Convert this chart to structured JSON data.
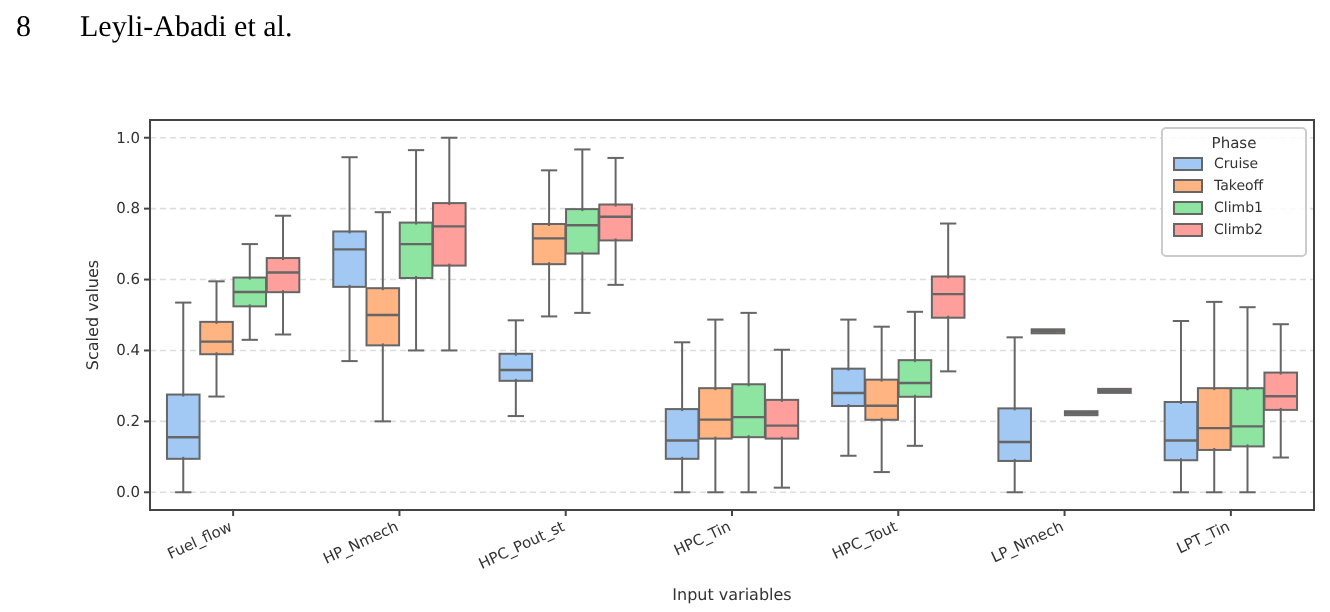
{
  "chart_data": {
    "type": "box",
    "annotations": [
      "8",
      "Leyli-Abadi et al."
    ],
    "xlabel": "Input variables",
    "ylabel": "Scaled values",
    "legend_title": "Phase",
    "legend": "top right",
    "grid": "y",
    "categories": [
      "Fuel_flow",
      "HP_Nmech",
      "HPC_Pout_st",
      "HPC_Tin",
      "HPC_Tout",
      "LP_Nmech",
      "LPT_Tin"
    ],
    "ylim": [
      -0.05,
      1.05
    ],
    "yticks": [
      {
        "value": 0,
        "label": "0.0"
      },
      {
        "value": 0.2,
        "label": "0.2"
      },
      {
        "value": 0.4,
        "label": "0.4"
      },
      {
        "value": 0.6,
        "label": "0.6"
      },
      {
        "value": 0.8,
        "label": "0.8"
      },
      {
        "value": 1,
        "label": "1.0"
      }
    ],
    "series": [
      {
        "name": "Cruise",
        "color": "#a1c9f4",
        "boxes": [
          {
            "low": 0,
            "q1": 0.1,
            "median": 0.155,
            "q3": 0.27,
            "high": 0.535
          },
          {
            "low": 0.37,
            "q1": 0.585,
            "median": 0.685,
            "q3": 0.73,
            "high": 0.945
          },
          {
            "low": 0.215,
            "q1": 0.32,
            "median": 0.345,
            "q3": 0.385,
            "high": 0.485
          },
          {
            "low": 0,
            "q1": 0.1,
            "median": 0.146,
            "q3": 0.229,
            "high": 0.423
          },
          {
            "low": 0.103,
            "q1": 0.249,
            "median": 0.28,
            "q3": 0.343,
            "high": 0.487
          },
          {
            "low": 0,
            "q1": 0.094,
            "median": 0.142,
            "q3": 0.231,
            "high": 0.437
          },
          {
            "low": 0,
            "q1": 0.096,
            "median": 0.146,
            "q3": 0.249,
            "high": 0.483
          }
        ]
      },
      {
        "name": "Takeoff",
        "color": "#ffb482",
        "boxes": [
          {
            "low": 0.27,
            "q1": 0.395,
            "median": 0.425,
            "q3": 0.475,
            "high": 0.595
          },
          {
            "low": 0.2,
            "q1": 0.42,
            "median": 0.5,
            "q3": 0.57,
            "high": 0.79
          },
          {
            "low": 0.496,
            "q1": 0.649,
            "median": 0.716,
            "q3": 0.751,
            "high": 0.908
          },
          {
            "low": 0,
            "q1": 0.157,
            "median": 0.205,
            "q3": 0.288,
            "high": 0.487
          },
          {
            "low": 0.057,
            "q1": 0.21,
            "median": 0.244,
            "q3": 0.312,
            "high": 0.467
          },
          {
            "low": 0.454,
            "q1": 0.454,
            "median": 0.454,
            "q3": 0.454,
            "high": 0.454
          },
          {
            "low": 0,
            "q1": 0.125,
            "median": 0.181,
            "q3": 0.288,
            "high": 0.537
          }
        ]
      },
      {
        "name": "Climb1",
        "color": "#8de5a1",
        "boxes": [
          {
            "low": 0.43,
            "q1": 0.53,
            "median": 0.565,
            "q3": 0.6,
            "high": 0.7
          },
          {
            "low": 0.4,
            "q1": 0.61,
            "median": 0.7,
            "q3": 0.755,
            "high": 0.965
          },
          {
            "low": 0.506,
            "q1": 0.679,
            "median": 0.753,
            "q3": 0.793,
            "high": 0.967
          },
          {
            "low": 0,
            "q1": 0.161,
            "median": 0.212,
            "q3": 0.299,
            "high": 0.506
          },
          {
            "low": 0.131,
            "q1": 0.275,
            "median": 0.308,
            "q3": 0.367,
            "high": 0.509
          },
          {
            "low": 0.223,
            "q1": 0.223,
            "median": 0.223,
            "q3": 0.223,
            "high": 0.223
          },
          {
            "low": 0,
            "q1": 0.135,
            "median": 0.186,
            "q3": 0.288,
            "high": 0.522
          }
        ]
      },
      {
        "name": "Climb2",
        "color": "#ff9f9b",
        "boxes": [
          {
            "low": 0.445,
            "q1": 0.57,
            "median": 0.62,
            "q3": 0.655,
            "high": 0.78
          },
          {
            "low": 0.4,
            "q1": 0.645,
            "median": 0.75,
            "q3": 0.81,
            "high": 1.0
          },
          {
            "low": 0.585,
            "q1": 0.716,
            "median": 0.777,
            "q3": 0.806,
            "high": 0.943
          },
          {
            "low": 0.013,
            "q1": 0.157,
            "median": 0.188,
            "q3": 0.255,
            "high": 0.402
          },
          {
            "low": 0.341,
            "q1": 0.498,
            "median": 0.559,
            "q3": 0.603,
            "high": 0.758
          },
          {
            "low": 0.286,
            "q1": 0.286,
            "median": 0.286,
            "q3": 0.286,
            "high": 0.286
          },
          {
            "low": 0.098,
            "q1": 0.238,
            "median": 0.271,
            "q3": 0.332,
            "high": 0.474
          }
        ]
      }
    ]
  }
}
